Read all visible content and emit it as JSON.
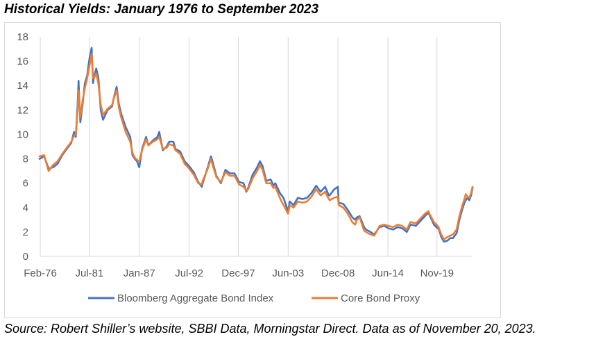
{
  "title": "Historical Yields: January 1976 to September 2023",
  "source_note": "Source: Robert Shiller’s website, SBBI Data, Morningstar Direct. Data as of November 20, 2023.",
  "chart_data": {
    "type": "line",
    "title": "",
    "xlabel": "",
    "ylabel": "",
    "ylim": [
      0,
      18
    ],
    "yticks": [
      0,
      2,
      4,
      6,
      8,
      10,
      12,
      14,
      16,
      18
    ],
    "xlim": [
      1976.0,
      2023.75
    ],
    "xticks": [
      {
        "label": "Feb-76",
        "x": 1976.08
      },
      {
        "label": "Jul-81",
        "x": 1981.5
      },
      {
        "label": "Jan-87",
        "x": 1987.0
      },
      {
        "label": "Jul-92",
        "x": 1992.5
      },
      {
        "label": "Dec-97",
        "x": 1997.92
      },
      {
        "label": "Jun-03",
        "x": 2003.42
      },
      {
        "label": "Dec-08",
        "x": 2008.92
      },
      {
        "label": "Jun-14",
        "x": 2014.42
      },
      {
        "label": "Nov-19",
        "x": 2019.83
      }
    ],
    "grid": {
      "vertical": true,
      "horizontal": false
    },
    "legend": "bottom",
    "series": [
      {
        "name": "Bloomberg Aggregate Bond Index",
        "color": "#4472c4",
        "points": [
          [
            1976.0,
            8.0
          ],
          [
            1976.5,
            8.2
          ],
          [
            1977.0,
            7.2
          ],
          [
            1977.5,
            7.3
          ],
          [
            1978.0,
            7.6
          ],
          [
            1978.5,
            8.3
          ],
          [
            1979.0,
            8.8
          ],
          [
            1979.5,
            9.3
          ],
          [
            1979.8,
            10.2
          ],
          [
            1980.0,
            9.8
          ],
          [
            1980.2,
            12.5
          ],
          [
            1980.3,
            14.4
          ],
          [
            1980.5,
            11.0
          ],
          [
            1980.75,
            12.5
          ],
          [
            1981.0,
            14.2
          ],
          [
            1981.25,
            14.8
          ],
          [
            1981.5,
            16.2
          ],
          [
            1981.75,
            17.1
          ],
          [
            1981.9,
            14.2
          ],
          [
            1982.0,
            14.7
          ],
          [
            1982.25,
            15.4
          ],
          [
            1982.5,
            14.6
          ],
          [
            1982.75,
            12.0
          ],
          [
            1983.0,
            11.2
          ],
          [
            1983.5,
            12.0
          ],
          [
            1984.0,
            12.3
          ],
          [
            1984.25,
            13.2
          ],
          [
            1984.5,
            13.9
          ],
          [
            1984.75,
            12.5
          ],
          [
            1985.0,
            11.7
          ],
          [
            1985.5,
            10.6
          ],
          [
            1986.0,
            9.8
          ],
          [
            1986.25,
            8.3
          ],
          [
            1986.5,
            8.0
          ],
          [
            1986.75,
            7.8
          ],
          [
            1987.0,
            7.3
          ],
          [
            1987.3,
            8.8
          ],
          [
            1987.75,
            9.8
          ],
          [
            1988.0,
            9.1
          ],
          [
            1988.5,
            9.5
          ],
          [
            1989.0,
            9.8
          ],
          [
            1989.2,
            10.2
          ],
          [
            1989.6,
            8.7
          ],
          [
            1990.0,
            9.0
          ],
          [
            1990.3,
            9.4
          ],
          [
            1990.75,
            9.4
          ],
          [
            1991.0,
            8.8
          ],
          [
            1991.5,
            8.6
          ],
          [
            1992.0,
            7.8
          ],
          [
            1992.5,
            7.4
          ],
          [
            1993.0,
            6.9
          ],
          [
            1993.5,
            6.1
          ],
          [
            1993.9,
            5.7
          ],
          [
            1994.0,
            6.0
          ],
          [
            1994.5,
            7.2
          ],
          [
            1994.9,
            8.2
          ],
          [
            1995.0,
            8.0
          ],
          [
            1995.5,
            6.6
          ],
          [
            1996.0,
            6.0
          ],
          [
            1996.5,
            7.1
          ],
          [
            1997.0,
            6.8
          ],
          [
            1997.5,
            6.8
          ],
          [
            1998.0,
            6.1
          ],
          [
            1998.5,
            6.0
          ],
          [
            1998.8,
            5.3
          ],
          [
            1999.0,
            5.6
          ],
          [
            1999.5,
            6.7
          ],
          [
            2000.0,
            7.3
          ],
          [
            2000.3,
            7.8
          ],
          [
            2000.6,
            7.4
          ],
          [
            2001.0,
            6.2
          ],
          [
            2001.5,
            6.3
          ],
          [
            2001.8,
            5.8
          ],
          [
            2002.0,
            6.0
          ],
          [
            2002.5,
            5.2
          ],
          [
            2002.9,
            4.8
          ],
          [
            2003.0,
            4.6
          ],
          [
            2003.4,
            3.7
          ],
          [
            2003.6,
            4.5
          ],
          [
            2004.0,
            4.2
          ],
          [
            2004.5,
            4.8
          ],
          [
            2005.0,
            4.7
          ],
          [
            2005.5,
            4.8
          ],
          [
            2006.0,
            5.2
          ],
          [
            2006.5,
            5.8
          ],
          [
            2007.0,
            5.3
          ],
          [
            2007.5,
            5.7
          ],
          [
            2007.9,
            5.0
          ],
          [
            2008.0,
            5.0
          ],
          [
            2008.5,
            5.5
          ],
          [
            2008.9,
            5.7
          ],
          [
            2009.0,
            4.4
          ],
          [
            2009.5,
            4.3
          ],
          [
            2010.0,
            3.8
          ],
          [
            2010.5,
            3.2
          ],
          [
            2010.8,
            3.0
          ],
          [
            2011.0,
            3.2
          ],
          [
            2011.3,
            3.3
          ],
          [
            2011.8,
            2.4
          ],
          [
            2012.0,
            2.2
          ],
          [
            2012.5,
            2.0
          ],
          [
            2012.9,
            1.8
          ],
          [
            2013.0,
            1.9
          ],
          [
            2013.5,
            2.4
          ],
          [
            2014.0,
            2.5
          ],
          [
            2014.5,
            2.3
          ],
          [
            2015.0,
            2.2
          ],
          [
            2015.5,
            2.4
          ],
          [
            2016.0,
            2.3
          ],
          [
            2016.5,
            2.0
          ],
          [
            2016.9,
            2.6
          ],
          [
            2017.0,
            2.6
          ],
          [
            2017.5,
            2.5
          ],
          [
            2018.0,
            2.9
          ],
          [
            2018.5,
            3.3
          ],
          [
            2018.9,
            3.6
          ],
          [
            2019.0,
            3.4
          ],
          [
            2019.5,
            2.6
          ],
          [
            2019.9,
            2.3
          ],
          [
            2020.0,
            2.3
          ],
          [
            2020.3,
            1.6
          ],
          [
            2020.6,
            1.2
          ],
          [
            2021.0,
            1.3
          ],
          [
            2021.3,
            1.5
          ],
          [
            2021.6,
            1.5
          ],
          [
            2022.0,
            1.9
          ],
          [
            2022.3,
            3.0
          ],
          [
            2022.6,
            3.8
          ],
          [
            2022.9,
            4.5
          ],
          [
            2023.0,
            4.6
          ],
          [
            2023.2,
            4.8
          ],
          [
            2023.4,
            4.6
          ],
          [
            2023.6,
            5.0
          ],
          [
            2023.75,
            5.6
          ]
        ]
      },
      {
        "name": "Core Bond Proxy",
        "color": "#ed7d31",
        "points": [
          [
            1976.0,
            8.2
          ],
          [
            1976.5,
            8.3
          ],
          [
            1977.0,
            7.0
          ],
          [
            1977.5,
            7.5
          ],
          [
            1978.0,
            7.8
          ],
          [
            1978.5,
            8.4
          ],
          [
            1979.0,
            8.9
          ],
          [
            1979.5,
            9.4
          ],
          [
            1979.8,
            9.9
          ],
          [
            1980.0,
            10.0
          ],
          [
            1980.2,
            12.0
          ],
          [
            1980.3,
            13.6
          ],
          [
            1980.5,
            11.4
          ],
          [
            1980.75,
            12.8
          ],
          [
            1981.0,
            13.8
          ],
          [
            1981.25,
            14.6
          ],
          [
            1981.5,
            15.6
          ],
          [
            1981.75,
            16.6
          ],
          [
            1981.9,
            14.6
          ],
          [
            1982.0,
            14.6
          ],
          [
            1982.25,
            15.0
          ],
          [
            1982.5,
            14.1
          ],
          [
            1982.75,
            12.4
          ],
          [
            1983.0,
            11.6
          ],
          [
            1983.5,
            12.1
          ],
          [
            1984.0,
            12.4
          ],
          [
            1984.25,
            13.1
          ],
          [
            1984.5,
            13.6
          ],
          [
            1984.75,
            12.2
          ],
          [
            1985.0,
            11.4
          ],
          [
            1985.5,
            10.2
          ],
          [
            1986.0,
            9.4
          ],
          [
            1986.25,
            8.5
          ],
          [
            1986.5,
            8.1
          ],
          [
            1986.75,
            7.9
          ],
          [
            1987.0,
            7.8
          ],
          [
            1987.3,
            8.7
          ],
          [
            1987.75,
            9.6
          ],
          [
            1988.0,
            9.1
          ],
          [
            1988.5,
            9.4
          ],
          [
            1989.0,
            9.6
          ],
          [
            1989.2,
            9.8
          ],
          [
            1989.6,
            8.8
          ],
          [
            1990.0,
            8.9
          ],
          [
            1990.3,
            9.2
          ],
          [
            1990.75,
            9.1
          ],
          [
            1991.0,
            8.7
          ],
          [
            1991.5,
            8.4
          ],
          [
            1992.0,
            7.6
          ],
          [
            1992.5,
            7.2
          ],
          [
            1993.0,
            6.7
          ],
          [
            1993.5,
            6.0
          ],
          [
            1993.9,
            5.9
          ],
          [
            1994.0,
            6.2
          ],
          [
            1994.5,
            7.1
          ],
          [
            1994.9,
            8.0
          ],
          [
            1995.0,
            7.7
          ],
          [
            1995.5,
            6.5
          ],
          [
            1996.0,
            6.1
          ],
          [
            1996.5,
            6.9
          ],
          [
            1997.0,
            6.6
          ],
          [
            1997.5,
            6.6
          ],
          [
            1998.0,
            5.9
          ],
          [
            1998.5,
            5.7
          ],
          [
            1998.8,
            5.4
          ],
          [
            1999.0,
            5.5
          ],
          [
            1999.5,
            6.4
          ],
          [
            2000.0,
            7.0
          ],
          [
            2000.3,
            7.5
          ],
          [
            2000.6,
            7.1
          ],
          [
            2001.0,
            6.0
          ],
          [
            2001.5,
            6.0
          ],
          [
            2001.8,
            5.6
          ],
          [
            2002.0,
            5.7
          ],
          [
            2002.5,
            4.8
          ],
          [
            2002.9,
            4.2
          ],
          [
            2003.0,
            4.1
          ],
          [
            2003.4,
            3.5
          ],
          [
            2003.6,
            4.2
          ],
          [
            2004.0,
            4.0
          ],
          [
            2004.5,
            4.5
          ],
          [
            2005.0,
            4.4
          ],
          [
            2005.5,
            4.5
          ],
          [
            2006.0,
            4.9
          ],
          [
            2006.5,
            5.5
          ],
          [
            2007.0,
            5.0
          ],
          [
            2007.5,
            5.3
          ],
          [
            2007.9,
            4.7
          ],
          [
            2008.0,
            4.6
          ],
          [
            2008.5,
            4.8
          ],
          [
            2008.9,
            4.9
          ],
          [
            2009.0,
            4.2
          ],
          [
            2009.5,
            4.0
          ],
          [
            2010.0,
            3.5
          ],
          [
            2010.5,
            2.8
          ],
          [
            2010.8,
            2.6
          ],
          [
            2011.0,
            3.0
          ],
          [
            2011.3,
            3.2
          ],
          [
            2011.8,
            2.1
          ],
          [
            2012.0,
            2.0
          ],
          [
            2012.5,
            1.8
          ],
          [
            2012.9,
            1.7
          ],
          [
            2013.0,
            1.8
          ],
          [
            2013.5,
            2.5
          ],
          [
            2014.0,
            2.6
          ],
          [
            2014.5,
            2.5
          ],
          [
            2015.0,
            2.4
          ],
          [
            2015.5,
            2.6
          ],
          [
            2016.0,
            2.5
          ],
          [
            2016.5,
            2.2
          ],
          [
            2016.9,
            2.8
          ],
          [
            2017.0,
            2.8
          ],
          [
            2017.5,
            2.7
          ],
          [
            2018.0,
            3.1
          ],
          [
            2018.5,
            3.5
          ],
          [
            2018.9,
            3.7
          ],
          [
            2019.0,
            3.5
          ],
          [
            2019.5,
            2.8
          ],
          [
            2019.9,
            2.5
          ],
          [
            2020.0,
            2.4
          ],
          [
            2020.3,
            1.8
          ],
          [
            2020.6,
            1.4
          ],
          [
            2021.0,
            1.6
          ],
          [
            2021.3,
            1.7
          ],
          [
            2021.6,
            1.8
          ],
          [
            2022.0,
            2.2
          ],
          [
            2022.3,
            3.3
          ],
          [
            2022.6,
            4.1
          ],
          [
            2022.9,
            4.8
          ],
          [
            2023.0,
            5.1
          ],
          [
            2023.2,
            4.9
          ],
          [
            2023.4,
            4.8
          ],
          [
            2023.6,
            5.2
          ],
          [
            2023.75,
            5.7
          ]
        ]
      }
    ]
  }
}
